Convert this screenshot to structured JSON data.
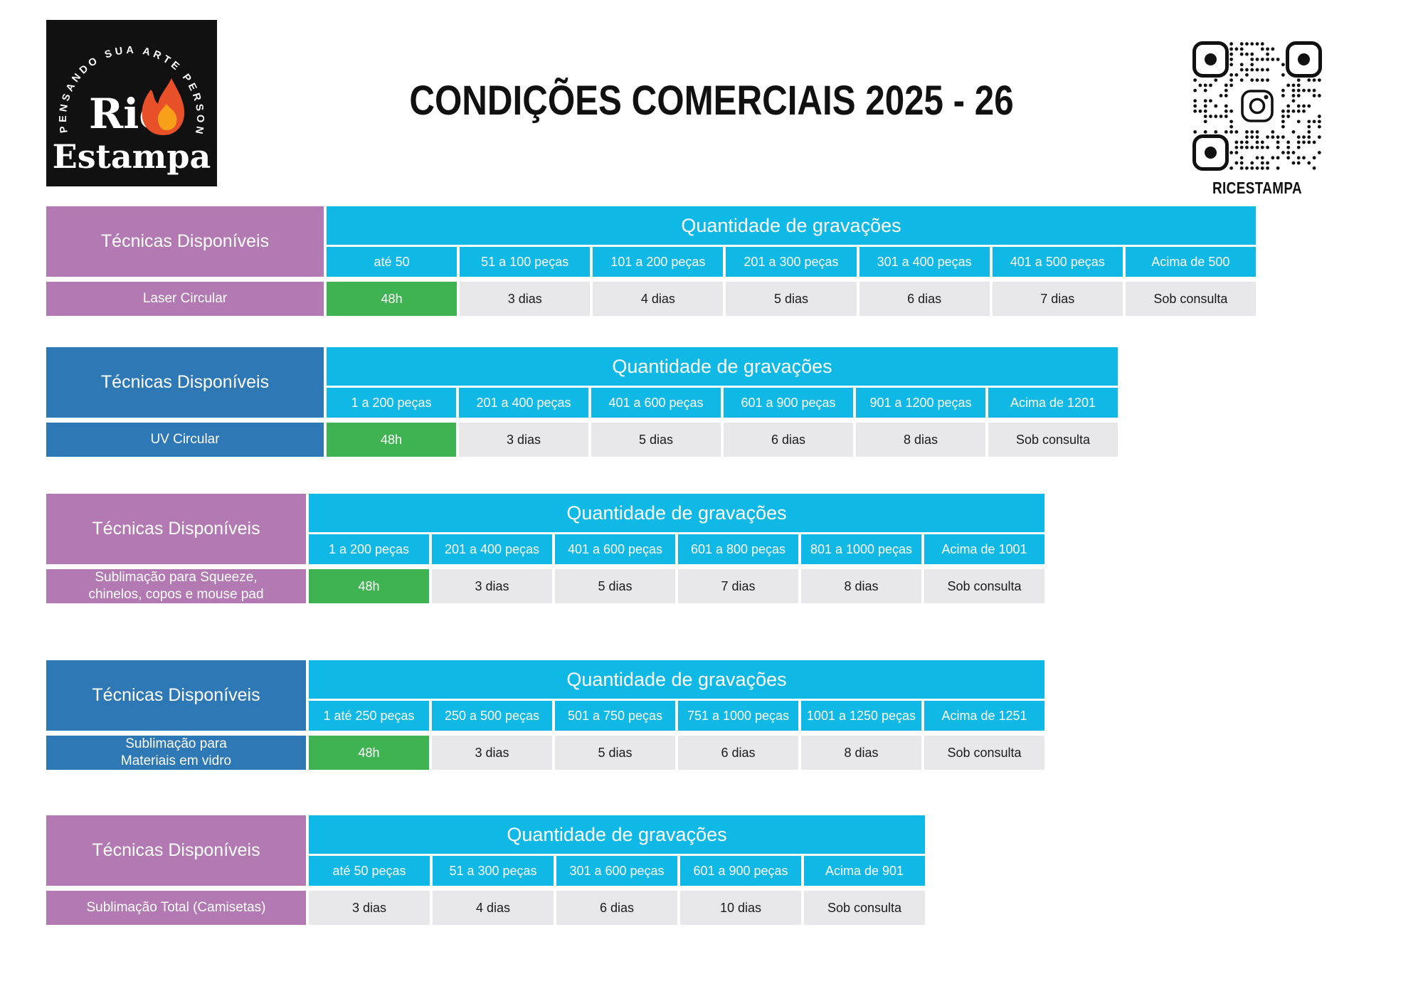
{
  "header": {
    "title": "CONDIÇÕES COMERCIAIS 2025 - 26",
    "logo": {
      "arc_text": "PENSANDO SUA ARTE PERSONALIZADA",
      "wordmark_top": "Ric",
      "wordmark_bottom": "Estampa"
    },
    "qr": {
      "label": "RICESTAMPA"
    }
  },
  "colors": {
    "cyan": "#10b8e6",
    "purple": "#b279b2",
    "blue": "#2e78b6",
    "green": "#3fb251",
    "gray_cell": "#e8e8ea",
    "logo_bg": "#111111",
    "flame_outer": "#e8502a",
    "flame_inner": "#f9a01b"
  },
  "left_header_label": "Técnicas Disponíveis",
  "group_header_label": "Quantidade de gravações",
  "tables": [
    {
      "technique": "Laser Circular",
      "theme": "purple",
      "columns": [
        "até 50",
        "51 a 100 peças",
        "101 a 200 peças",
        "201 a 300 peças",
        "301 a 400 peças",
        "401 a 500 peças",
        "Acima de 500"
      ],
      "values": [
        "48h",
        "3 dias",
        "4 dias",
        "5 dias",
        "6 dias",
        "7 dias",
        "Sob consulta"
      ],
      "first_cell_green": true
    },
    {
      "technique": "UV Circular",
      "theme": "blue",
      "columns": [
        "1 a 200 peças",
        "201 a 400 peças",
        "401 a 600 peças",
        "601 a 900 peças",
        "901 a 1200 peças",
        "Acima de 1201"
      ],
      "values": [
        "48h",
        "3 dias",
        "5 dias",
        "6 dias",
        "8 dias",
        "Sob consulta"
      ],
      "first_cell_green": true
    },
    {
      "technique": "Sublimação para Squeeze,\nchinelos, copos e mouse pad",
      "theme": "purple",
      "columns": [
        "1 a 200 peças",
        "201 a 400 peças",
        "401 a 600 peças",
        "601 a 800 peças",
        "801 a 1000 peças",
        "Acima de 1001"
      ],
      "values": [
        "48h",
        "3 dias",
        "5 dias",
        "7 dias",
        "8 dias",
        "Sob consulta"
      ],
      "first_cell_green": true
    },
    {
      "technique": "Sublimação para\nMateriais em vidro",
      "theme": "blue",
      "columns": [
        "1 até 250 peças",
        "250 a 500 peças",
        "501 a 750 peças",
        "751 a 1000 peças",
        "1001 a 1250 peças",
        "Acima de 1251"
      ],
      "values": [
        "48h",
        "3 dias",
        "5 dias",
        "6 dias",
        "8 dias",
        "Sob consulta"
      ],
      "first_cell_green": true
    },
    {
      "technique": "Sublimação Total (Camisetas)",
      "theme": "purple",
      "columns": [
        "até 50 peças",
        "51 a 300 peças",
        "301 a 600 peças",
        "601 a 900 peças",
        "Acima de 901"
      ],
      "values": [
        "3 dias",
        "4 dias",
        "6 dias",
        "10 dias",
        "Sob consulta"
      ],
      "first_cell_green": false
    }
  ]
}
